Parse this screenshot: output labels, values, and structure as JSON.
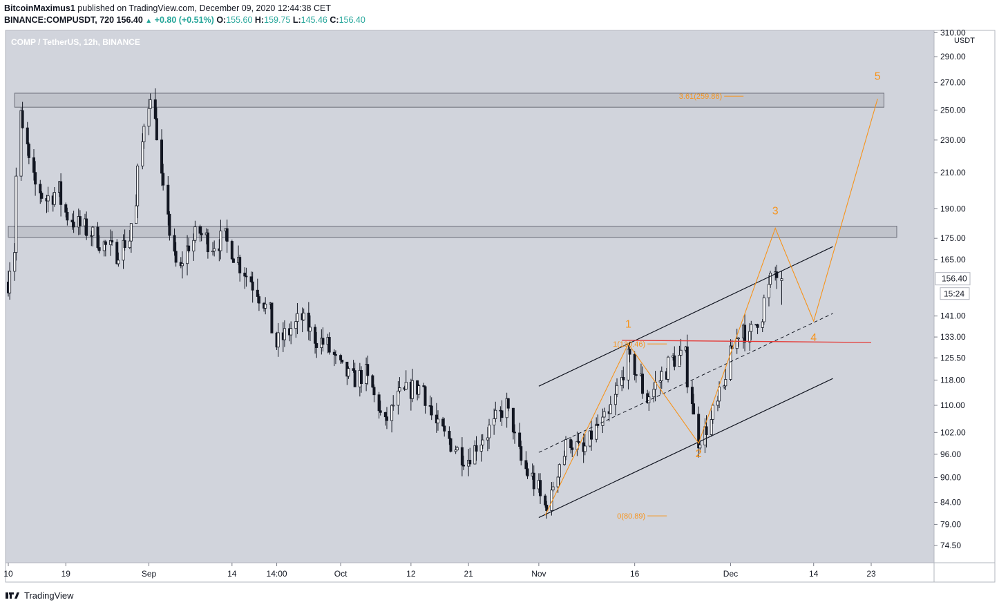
{
  "header": {
    "author": "BitcoinMaximus1",
    "published": "published on TradingView.com, December 09, 2020 12:44:38 CET",
    "symbol": "BINANCE:COMPUSDT, 720",
    "last": "156.40",
    "change": "+0.80 (+0.51%)",
    "o_label": "O:",
    "o_value": "155.60",
    "h_label": "H:",
    "h_value": "159.75",
    "l_label": "L:",
    "l_value": "145.46",
    "c_label": "C:",
    "c_value": "156.40"
  },
  "footer": {
    "brand": "TradingView",
    "logo_icon": "tradingview-logo-icon"
  },
  "chart_data": {
    "type": "candlestick",
    "title": "COMP / TetherUS, 12h, BINANCE",
    "currency": "USDT",
    "colors": {
      "background": "#d1d4dc",
      "candle_up": "#ffffff",
      "candle_down": "#131722",
      "wave": "#f7931a",
      "resistance_line": "#e53935",
      "channel": "#131722",
      "zone_fill": "#b2b5be"
    },
    "y_scale": "log",
    "ylim": [
      71,
      312
    ],
    "y_ticks": [
      310.0,
      290.0,
      270.0,
      250.0,
      230.0,
      210.0,
      190.0,
      175.0,
      165.0,
      141.0,
      133.0,
      125.5,
      118.0,
      110.0,
      102.0,
      96.0,
      90.0,
      84.0,
      79.0,
      74.5
    ],
    "y_tick_labels": [
      "310.00",
      "290.00",
      "270.00",
      "250.00",
      "230.00",
      "210.00",
      "190.00",
      "175.00",
      "165.00",
      "141.00",
      "133.00",
      "125.50",
      "118.00",
      "110.00",
      "102.00",
      "96.00",
      "90.00",
      "84.00",
      "79.00",
      "74.50"
    ],
    "x_start": "2020-08-10",
    "x_end": "2020-12-27",
    "x_ticks": [
      {
        "date": "2020-08-10",
        "label": "10"
      },
      {
        "date": "2020-08-19",
        "label": "19"
      },
      {
        "date": "2020-09-01",
        "label": "Sep"
      },
      {
        "date": "2020-09-14",
        "label": "14"
      },
      {
        "date": "2020-09-21",
        "label": "14:00"
      },
      {
        "date": "2020-10-01",
        "label": "Oct"
      },
      {
        "date": "2020-10-12",
        "label": "12"
      },
      {
        "date": "2020-10-21",
        "label": "21"
      },
      {
        "date": "2020-11-01",
        "label": "Nov"
      },
      {
        "date": "2020-11-16",
        "label": "16"
      },
      {
        "date": "2020-12-01",
        "label": "Dec"
      },
      {
        "date": "2020-12-14",
        "label": "14"
      },
      {
        "date": "2020-12-23",
        "label": "23"
      }
    ],
    "last_price": 156.4,
    "last_price_label": "156.40",
    "countdown": "15:24",
    "close_path": [
      [
        "2020-08-10",
        155
      ],
      [
        "2020-08-11",
        170
      ],
      [
        "2020-08-12",
        245
      ],
      [
        "2020-08-13",
        225
      ],
      [
        "2020-08-14",
        205
      ],
      [
        "2020-08-16",
        195
      ],
      [
        "2020-08-18",
        200
      ],
      [
        "2020-08-19",
        188
      ],
      [
        "2020-08-21",
        182
      ],
      [
        "2020-08-23",
        178
      ],
      [
        "2020-08-25",
        172
      ],
      [
        "2020-08-27",
        168
      ],
      [
        "2020-08-29",
        175
      ],
      [
        "2020-08-30",
        190
      ],
      [
        "2020-08-31",
        228
      ],
      [
        "2020-09-01",
        258
      ],
      [
        "2020-09-02",
        250
      ],
      [
        "2020-09-03",
        205
      ],
      [
        "2020-09-04",
        190
      ],
      [
        "2020-09-05",
        165
      ],
      [
        "2020-09-06",
        160
      ],
      [
        "2020-09-07",
        170
      ],
      [
        "2020-09-09",
        178
      ],
      [
        "2020-09-11",
        172
      ],
      [
        "2020-09-13",
        175
      ],
      [
        "2020-09-14",
        170
      ],
      [
        "2020-09-16",
        160
      ],
      [
        "2020-09-18",
        152
      ],
      [
        "2020-09-20",
        142
      ],
      [
        "2020-09-21",
        130
      ],
      [
        "2020-09-23",
        135
      ],
      [
        "2020-09-25",
        140
      ],
      [
        "2020-09-27",
        133
      ],
      [
        "2020-09-29",
        130
      ],
      [
        "2020-10-01",
        122
      ],
      [
        "2020-10-03",
        118
      ],
      [
        "2020-10-05",
        120
      ],
      [
        "2020-10-07",
        110
      ],
      [
        "2020-10-08",
        104
      ],
      [
        "2020-10-10",
        112
      ],
      [
        "2020-10-12",
        115
      ],
      [
        "2020-10-14",
        116
      ],
      [
        "2020-10-16",
        104
      ],
      [
        "2020-10-18",
        100
      ],
      [
        "2020-10-20",
        96
      ],
      [
        "2020-10-21",
        95
      ],
      [
        "2020-10-23",
        100
      ],
      [
        "2020-10-25",
        104
      ],
      [
        "2020-10-27",
        110
      ],
      [
        "2020-10-28",
        104
      ],
      [
        "2020-10-29",
        96
      ],
      [
        "2020-10-30",
        92
      ],
      [
        "2020-10-31",
        90
      ],
      [
        "2020-11-01",
        87
      ],
      [
        "2020-11-02",
        83
      ],
      [
        "2020-11-03",
        85
      ],
      [
        "2020-11-04",
        92
      ],
      [
        "2020-11-06",
        100
      ],
      [
        "2020-11-08",
        96
      ],
      [
        "2020-11-10",
        103
      ],
      [
        "2020-11-12",
        106
      ],
      [
        "2020-11-14",
        118
      ],
      [
        "2020-11-15",
        125
      ],
      [
        "2020-11-16",
        122
      ],
      [
        "2020-11-17",
        118
      ],
      [
        "2020-11-18",
        112
      ],
      [
        "2020-11-20",
        118
      ],
      [
        "2020-11-22",
        125
      ],
      [
        "2020-11-24",
        126
      ],
      [
        "2020-11-25",
        112
      ],
      [
        "2020-11-26",
        100
      ],
      [
        "2020-11-27",
        102
      ],
      [
        "2020-11-28",
        105
      ],
      [
        "2020-11-29",
        110
      ],
      [
        "2020-11-30",
        115
      ],
      [
        "2020-12-01",
        126
      ],
      [
        "2020-12-02",
        132
      ],
      [
        "2020-12-03",
        138
      ],
      [
        "2020-12-04",
        132
      ],
      [
        "2020-12-05",
        138
      ],
      [
        "2020-12-06",
        142
      ],
      [
        "2020-12-07",
        152
      ],
      [
        "2020-12-08",
        159
      ],
      [
        "2020-12-09",
        156.4
      ]
    ],
    "zones": [
      {
        "from": "2020-08-11",
        "to": "2020-12-25",
        "low": 252,
        "high": 262
      },
      {
        "from": "2020-08-10",
        "to": "2020-12-27",
        "low": 175.5,
        "high": 181
      }
    ],
    "horizontal_lines": [
      {
        "from": "2020-11-14",
        "to": "2020-12-23",
        "y0": 131,
        "y1": 131.8
      }
    ],
    "channel": {
      "upper": [
        [
          "2020-11-01",
          116
        ],
        [
          "2020-12-17",
          171
        ]
      ],
      "lower": [
        [
          "2020-11-01",
          80.5
        ],
        [
          "2020-12-17",
          118.5
        ]
      ],
      "middle": [
        [
          "2020-11-01",
          96.5
        ],
        [
          "2020-12-17",
          142
        ]
      ]
    },
    "wave_path": [
      [
        "2020-11-02",
        81
      ],
      [
        "2020-11-15",
        130.5
      ],
      [
        "2020-11-26",
        99
      ],
      [
        "2020-12-08",
        180
      ],
      [
        "2020-12-14",
        139
      ],
      [
        "2020-12-24",
        258
      ]
    ],
    "wave_labels": [
      {
        "text": "1",
        "date": "2020-11-15",
        "y": 136.5
      },
      {
        "text": "2",
        "date": "2020-11-26",
        "y": 95.2
      },
      {
        "text": "3",
        "date": "2020-12-08",
        "y": 187
      },
      {
        "text": "4",
        "date": "2020-12-14",
        "y": 131.5
      },
      {
        "text": "5",
        "date": "2020-12-24",
        "y": 272
      }
    ],
    "fib_levels": [
      {
        "label": "3.61(259.86)",
        "value": 259.86,
        "date": "2020-11-30"
      },
      {
        "label": "1(130.46)",
        "value": 130.46,
        "date": "2020-11-18"
      },
      {
        "label": "0(80.89)",
        "value": 80.89,
        "date": "2020-11-18"
      }
    ]
  }
}
